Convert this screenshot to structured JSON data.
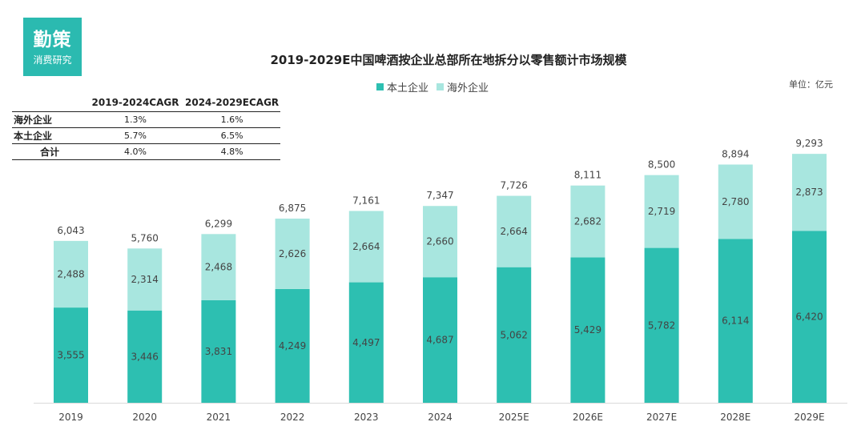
{
  "brand": {
    "logo_main": "勤策",
    "logo_sub": "消费研究",
    "logo_color": "#2bbab0"
  },
  "cagr_table": {
    "headers": [
      "",
      "2019-2024CAGR",
      "2024-2029ECAGR"
    ],
    "rows": [
      {
        "label": "海外企业",
        "v1": "1.3%",
        "v2": "1.6%"
      },
      {
        "label": "本土企业",
        "v1": "5.7%",
        "v2": "6.5%"
      },
      {
        "label": "合计",
        "v1": "4.0%",
        "v2": "4.8%"
      }
    ]
  },
  "unit_label": "单位：亿元",
  "chart_data": {
    "type": "bar",
    "stacked": true,
    "title": "2019-2029E中国啤酒按企业总部所在地拆分以零售额计市场规模",
    "xlabel": "",
    "ylabel": "",
    "ylim": [
      0,
      10000
    ],
    "categories": [
      "2019",
      "2020",
      "2021",
      "2022",
      "2023",
      "2024",
      "2025E",
      "2026E",
      "2027E",
      "2028E",
      "2029E"
    ],
    "series": [
      {
        "name": "本土企业",
        "color": "#2dbfb1",
        "values": [
          3555,
          3446,
          3831,
          4249,
          4497,
          4687,
          5062,
          5429,
          5782,
          6114,
          6420
        ]
      },
      {
        "name": "海外企业",
        "color": "#a8e6df",
        "values": [
          2488,
          2314,
          2468,
          2626,
          2664,
          2660,
          2664,
          2682,
          2719,
          2780,
          2873
        ]
      }
    ],
    "totals": [
      6043,
      5760,
      6299,
      6875,
      7161,
      7347,
      7726,
      8111,
      8500,
      8894,
      9293
    ],
    "legend_position": "top-center"
  }
}
